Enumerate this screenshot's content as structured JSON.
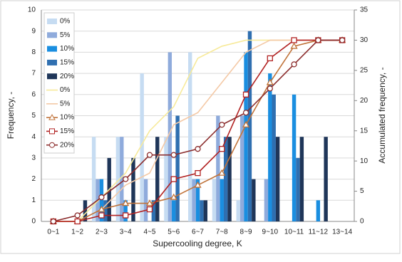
{
  "chart_data": {
    "type": "bar_line",
    "xlabel": "Supercooling degree, K",
    "ylabel": "Frequency, -",
    "y2label": "Accumulated frequency, -",
    "categories": [
      "0~1",
      "1~2",
      "2~3",
      "3~4",
      "4~5",
      "5~6",
      "6~7",
      "7~8",
      "8~9",
      "9~10",
      "10~11",
      "11~12",
      "13~14"
    ],
    "ylim": [
      0,
      10
    ],
    "yticks": [
      0,
      1,
      2,
      3,
      4,
      5,
      6,
      7,
      8,
      9,
      10
    ],
    "y2lim": [
      0,
      35
    ],
    "y2ticks": [
      0,
      5,
      10,
      15,
      20,
      25,
      30,
      35
    ],
    "grid": true,
    "legend": "upper left",
    "series": [
      {
        "name": "0%",
        "type": "bar",
        "color": "#c6dcf2",
        "values": [
          0,
          0,
          4,
          4,
          7,
          4,
          8,
          2,
          1,
          0,
          0,
          0,
          0
        ]
      },
      {
        "name": "5%",
        "type": "bar",
        "color": "#8fabdc",
        "values": [
          0,
          0,
          2,
          4,
          2,
          8,
          2,
          5,
          5,
          2,
          0,
          0,
          0
        ]
      },
      {
        "name": "10%",
        "type": "bar",
        "color": "#1a8ee0",
        "values": [
          0,
          0,
          2,
          1,
          0,
          1,
          2,
          2,
          8,
          7,
          6,
          1,
          0
        ]
      },
      {
        "name": "15%",
        "type": "bar",
        "color": "#2f6fb0",
        "values": [
          0,
          0,
          1,
          0,
          1,
          5,
          1,
          4,
          9,
          6,
          3,
          0,
          0
        ]
      },
      {
        "name": "20%",
        "type": "bar",
        "color": "#1f3659",
        "values": [
          0,
          1,
          3,
          3,
          4,
          0,
          1,
          4,
          2,
          4,
          4,
          4,
          0
        ]
      },
      {
        "name": "0%",
        "type": "line",
        "axis": "y2",
        "marker": "none",
        "color": "#f7ea9a",
        "values": [
          0,
          0,
          4,
          8,
          15,
          19,
          27,
          29,
          30,
          30,
          30,
          30,
          30
        ]
      },
      {
        "name": "5%",
        "type": "line",
        "axis": "y2",
        "marker": "none",
        "color": "#f4c9a6",
        "values": [
          0,
          0,
          2,
          6,
          8,
          16,
          18,
          23,
          28,
          30,
          30,
          30,
          30
        ]
      },
      {
        "name": "10%",
        "type": "line",
        "axis": "y2",
        "marker": "triangle",
        "color": "#c0733a",
        "values": [
          0,
          0,
          2,
          3,
          3,
          4,
          6,
          8,
          16,
          23,
          29,
          30,
          30
        ]
      },
      {
        "name": "15%",
        "type": "line",
        "axis": "y2",
        "marker": "square",
        "color": "#b22222",
        "values": [
          0,
          0,
          1,
          1,
          2,
          7,
          8,
          12,
          21,
          27,
          30,
          30,
          30
        ]
      },
      {
        "name": "20%",
        "type": "line",
        "axis": "y2",
        "marker": "circle",
        "color": "#8b2c2c",
        "values": [
          0,
          1,
          4,
          7,
          11,
          11,
          12,
          16,
          18,
          22,
          26,
          30,
          30
        ]
      }
    ]
  }
}
